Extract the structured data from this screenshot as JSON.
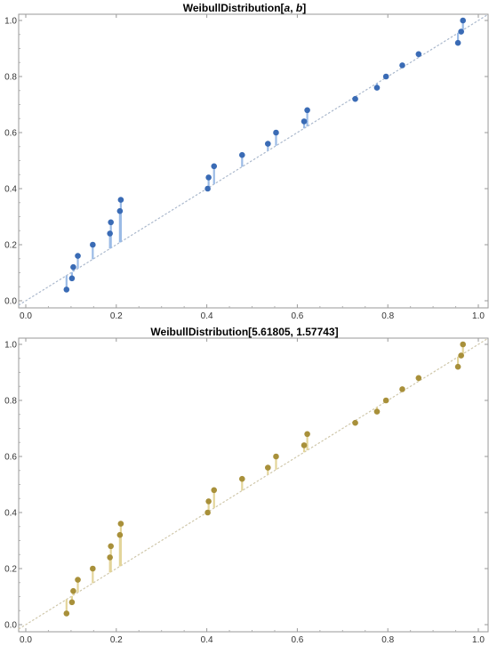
{
  "chart_data": [
    {
      "type": "scatter",
      "title": {
        "prefix": "WeibullDistribution[",
        "p1": "a",
        "sep": ", ",
        "p2": "b",
        "suffix": "]"
      },
      "xlim": [
        0,
        1
      ],
      "ylim": [
        0,
        1
      ],
      "xticks": [
        "0.0",
        "0.2",
        "0.4",
        "0.6",
        "0.8",
        "1.0"
      ],
      "yticks": [
        "0.0",
        "0.2",
        "0.4",
        "0.6",
        "0.8",
        "1.0"
      ],
      "reference_line": "diagonal dotted",
      "colors": {
        "point": "#3a6bb5",
        "stem": "#9bbbe6",
        "ref": "#aab8cc"
      },
      "points": [
        {
          "x": 0.09,
          "y": 0.04
        },
        {
          "x": 0.102,
          "y": 0.08
        },
        {
          "x": 0.105,
          "y": 0.12
        },
        {
          "x": 0.115,
          "y": 0.16
        },
        {
          "x": 0.148,
          "y": 0.2
        },
        {
          "x": 0.186,
          "y": 0.24
        },
        {
          "x": 0.188,
          "y": 0.28
        },
        {
          "x": 0.208,
          "y": 0.32
        },
        {
          "x": 0.21,
          "y": 0.36
        },
        {
          "x": 0.402,
          "y": 0.4
        },
        {
          "x": 0.404,
          "y": 0.44
        },
        {
          "x": 0.416,
          "y": 0.48
        },
        {
          "x": 0.478,
          "y": 0.52
        },
        {
          "x": 0.535,
          "y": 0.56
        },
        {
          "x": 0.553,
          "y": 0.6
        },
        {
          "x": 0.615,
          "y": 0.64
        },
        {
          "x": 0.622,
          "y": 0.68
        },
        {
          "x": 0.728,
          "y": 0.72
        },
        {
          "x": 0.776,
          "y": 0.76
        },
        {
          "x": 0.796,
          "y": 0.8
        },
        {
          "x": 0.832,
          "y": 0.84
        },
        {
          "x": 0.868,
          "y": 0.88
        },
        {
          "x": 0.955,
          "y": 0.92
        },
        {
          "x": 0.962,
          "y": 0.96
        },
        {
          "x": 0.966,
          "y": 1.0
        }
      ]
    },
    {
      "type": "scatter",
      "title": {
        "prefix": "WeibullDistribution[5.61805, 1.57743]",
        "p1": "",
        "sep": "",
        "p2": "",
        "suffix": ""
      },
      "xlim": [
        0,
        1
      ],
      "ylim": [
        0,
        1
      ],
      "xticks": [
        "0.0",
        "0.2",
        "0.4",
        "0.6",
        "0.8",
        "1.0"
      ],
      "yticks": [
        "0.0",
        "0.2",
        "0.4",
        "0.6",
        "0.8",
        "1.0"
      ],
      "reference_line": "diagonal dotted",
      "colors": {
        "point": "#a8903a",
        "stem": "#e3d59a",
        "ref": "#cfc7aa"
      },
      "points": [
        {
          "x": 0.09,
          "y": 0.04
        },
        {
          "x": 0.102,
          "y": 0.08
        },
        {
          "x": 0.105,
          "y": 0.12
        },
        {
          "x": 0.115,
          "y": 0.16
        },
        {
          "x": 0.148,
          "y": 0.2
        },
        {
          "x": 0.186,
          "y": 0.24
        },
        {
          "x": 0.188,
          "y": 0.28
        },
        {
          "x": 0.208,
          "y": 0.32
        },
        {
          "x": 0.21,
          "y": 0.36
        },
        {
          "x": 0.402,
          "y": 0.4
        },
        {
          "x": 0.404,
          "y": 0.44
        },
        {
          "x": 0.416,
          "y": 0.48
        },
        {
          "x": 0.478,
          "y": 0.52
        },
        {
          "x": 0.535,
          "y": 0.56
        },
        {
          "x": 0.553,
          "y": 0.6
        },
        {
          "x": 0.615,
          "y": 0.64
        },
        {
          "x": 0.622,
          "y": 0.68
        },
        {
          "x": 0.728,
          "y": 0.72
        },
        {
          "x": 0.776,
          "y": 0.76
        },
        {
          "x": 0.796,
          "y": 0.8
        },
        {
          "x": 0.832,
          "y": 0.84
        },
        {
          "x": 0.868,
          "y": 0.88
        },
        {
          "x": 0.955,
          "y": 0.92
        },
        {
          "x": 0.962,
          "y": 0.96
        },
        {
          "x": 0.966,
          "y": 1.0
        }
      ]
    }
  ]
}
